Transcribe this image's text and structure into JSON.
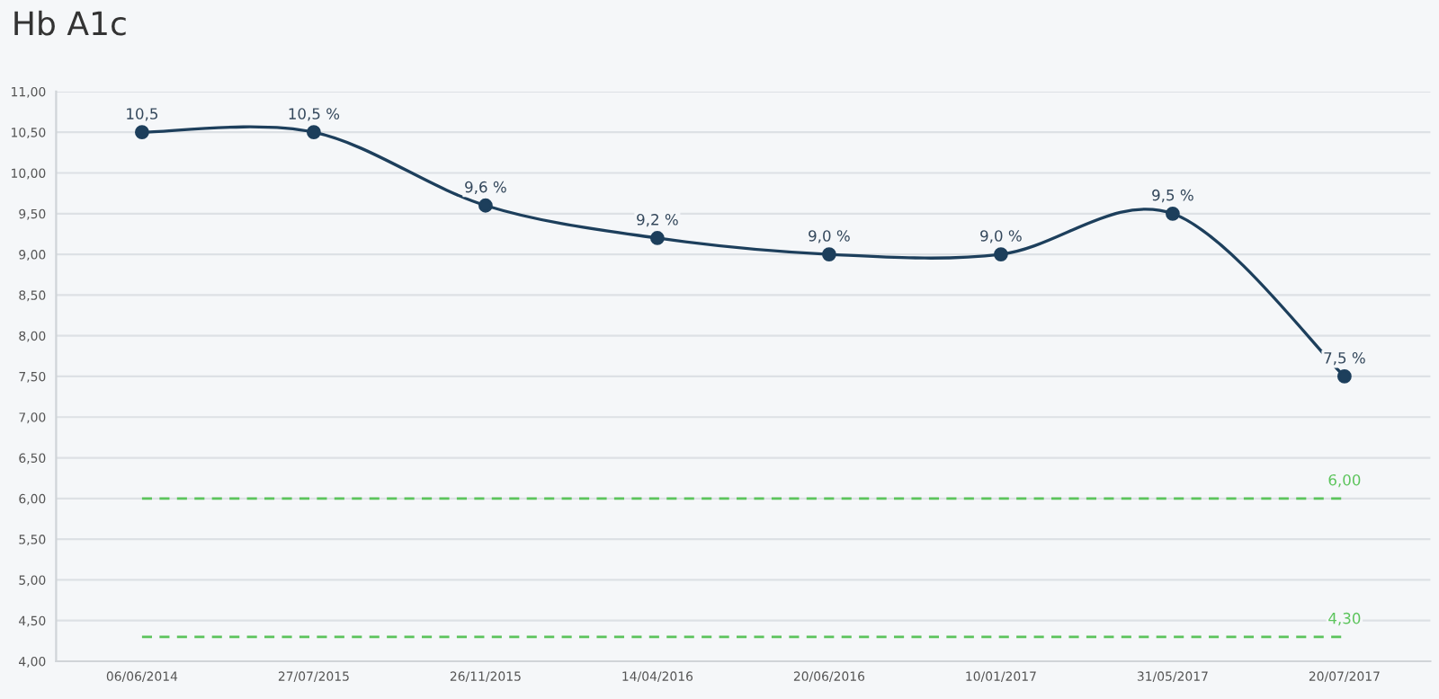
{
  "chart_data": {
    "type": "line",
    "title": "Hb A1c",
    "categories": [
      "06/06/2014",
      "27/07/2015",
      "26/11/2015",
      "14/04/2016",
      "20/06/2016",
      "10/01/2017",
      "31/05/2017",
      "20/07/2017"
    ],
    "series": [
      {
        "color": "#1d3f5c",
        "values": [
          10.5,
          10.5,
          9.6,
          9.2,
          9.0,
          9.0,
          9.5,
          7.5
        ],
        "value_labels": [
          "10,5",
          "10,5 %",
          "9,6 %",
          "9,2 %",
          "9,0 %",
          "9,0 %",
          "9,5 %",
          "7,5 %"
        ],
        "marker": "circle",
        "line_style": "solid"
      },
      {
        "color": "#5cc45c",
        "values": [
          6.0,
          6.0,
          6.0,
          6.0,
          6.0,
          6.0,
          6.0,
          6.0
        ],
        "value_labels": [
          null,
          null,
          null,
          null,
          null,
          null,
          null,
          "6,00"
        ],
        "marker": "none",
        "line_style": "dashed"
      },
      {
        "color": "#5cc45c",
        "values": [
          4.3,
          4.3,
          4.3,
          4.3,
          4.3,
          4.3,
          4.3,
          4.3
        ],
        "value_labels": [
          null,
          null,
          null,
          null,
          null,
          null,
          null,
          "4,30"
        ],
        "marker": "none",
        "line_style": "dashed"
      }
    ],
    "ylim": [
      4.0,
      11.0
    ],
    "yticks": [
      {
        "value": 4.0,
        "label": "4,00"
      },
      {
        "value": 4.5,
        "label": "4,50"
      },
      {
        "value": 5.0,
        "label": "5,00"
      },
      {
        "value": 5.5,
        "label": "5,50"
      },
      {
        "value": 6.0,
        "label": "6,00"
      },
      {
        "value": 6.5,
        "label": "6,50"
      },
      {
        "value": 7.0,
        "label": "7,00"
      },
      {
        "value": 7.5,
        "label": "7,50"
      },
      {
        "value": 8.0,
        "label": "8,00"
      },
      {
        "value": 8.5,
        "label": "8,50"
      },
      {
        "value": 9.0,
        "label": "9,00"
      },
      {
        "value": 9.5,
        "label": "9,50"
      },
      {
        "value": 10.0,
        "label": "10,00"
      },
      {
        "value": 10.5,
        "label": "10,50"
      },
      {
        "value": 11.0,
        "label": "11,00"
      }
    ],
    "grid": "y",
    "legend": false
  }
}
